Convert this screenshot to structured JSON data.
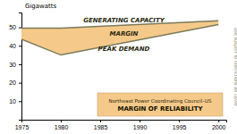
{
  "chart_data": {
    "type": "area",
    "x": [
      1975,
      1980,
      2000
    ],
    "series": [
      {
        "name": "GENERATING CAPACITY",
        "color": "#7a7a5a",
        "values": [
          49.5,
          49.5,
          53.5
        ]
      },
      {
        "name": "PEAK DEMAND",
        "color": "#7a7a5a",
        "values": [
          43.5,
          35.0,
          51.5
        ]
      }
    ],
    "color": "#f5c98a",
    "ylabel": "Gigawatts",
    "annotations": [
      "MARGIN",
      "Northeast Power Coordinating Council–US",
      "MARGIN OF RELIABILITY",
      "use subject to restrictions on cover"
    ],
    "xlim": [
      1975,
      2001
    ],
    "xticks": [
      1975,
      1980,
      1985,
      1990,
      1995,
      2000
    ],
    "ylim": [
      0,
      58
    ],
    "yticks": [
      10,
      20,
      30,
      40,
      50
    ]
  }
}
